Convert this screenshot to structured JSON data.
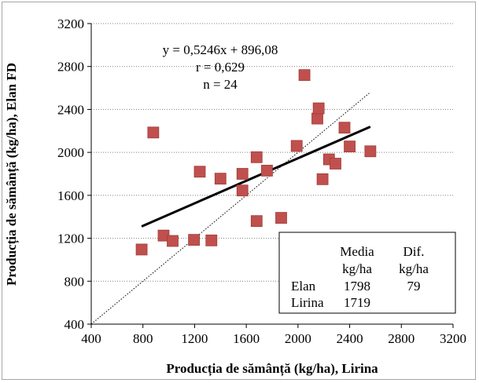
{
  "chart_data": {
    "type": "scatter",
    "xlabel": "Producția de sămânță (kg/ha), Lirina",
    "ylabel": "Producția de sămânță (kg/ha), Elan FD",
    "xlim": [
      400,
      3200
    ],
    "ylim": [
      400,
      3200
    ],
    "xticks": [
      400,
      800,
      1200,
      1600,
      2000,
      2400,
      2800,
      3200
    ],
    "yticks": [
      400,
      800,
      1200,
      1600,
      2000,
      2400,
      2800,
      3200
    ],
    "grid": "horizontal dotted",
    "marker_color": "#c0504d",
    "points": [
      {
        "x": 790,
        "y": 1095
      },
      {
        "x": 880,
        "y": 2185
      },
      {
        "x": 960,
        "y": 1225
      },
      {
        "x": 1030,
        "y": 1175
      },
      {
        "x": 1195,
        "y": 1185
      },
      {
        "x": 1240,
        "y": 1820
      },
      {
        "x": 1330,
        "y": 1180
      },
      {
        "x": 1400,
        "y": 1755
      },
      {
        "x": 1570,
        "y": 1800
      },
      {
        "x": 1570,
        "y": 1645
      },
      {
        "x": 1680,
        "y": 1955
      },
      {
        "x": 1680,
        "y": 1360
      },
      {
        "x": 1760,
        "y": 1830
      },
      {
        "x": 1870,
        "y": 1390
      },
      {
        "x": 1990,
        "y": 2060
      },
      {
        "x": 2050,
        "y": 2720
      },
      {
        "x": 2150,
        "y": 2315
      },
      {
        "x": 2160,
        "y": 2410
      },
      {
        "x": 2190,
        "y": 1750
      },
      {
        "x": 2240,
        "y": 1935
      },
      {
        "x": 2290,
        "y": 1895
      },
      {
        "x": 2360,
        "y": 2230
      },
      {
        "x": 2400,
        "y": 2055
      },
      {
        "x": 2560,
        "y": 2010
      }
    ],
    "regression": {
      "slope": 0.5246,
      "intercept": 896.08,
      "x_range": [
        790,
        2560
      ],
      "color": "#000000"
    },
    "identity_line": {
      "x_range": [
        400,
        2560
      ],
      "style": "dotted"
    },
    "annotations": {
      "equation": "y = 0,5246x + 896,08",
      "r": "r = 0,629",
      "n": "n = 24"
    },
    "stats_table": {
      "header_row1": [
        "Media",
        "Dif."
      ],
      "header_row2": [
        "kg/ha",
        "kg/ha"
      ],
      "rows": [
        {
          "label": "Elan",
          "mean": "1798",
          "diff": "79"
        },
        {
          "label": "Lirina",
          "mean": "1719",
          "diff": ""
        }
      ]
    }
  }
}
